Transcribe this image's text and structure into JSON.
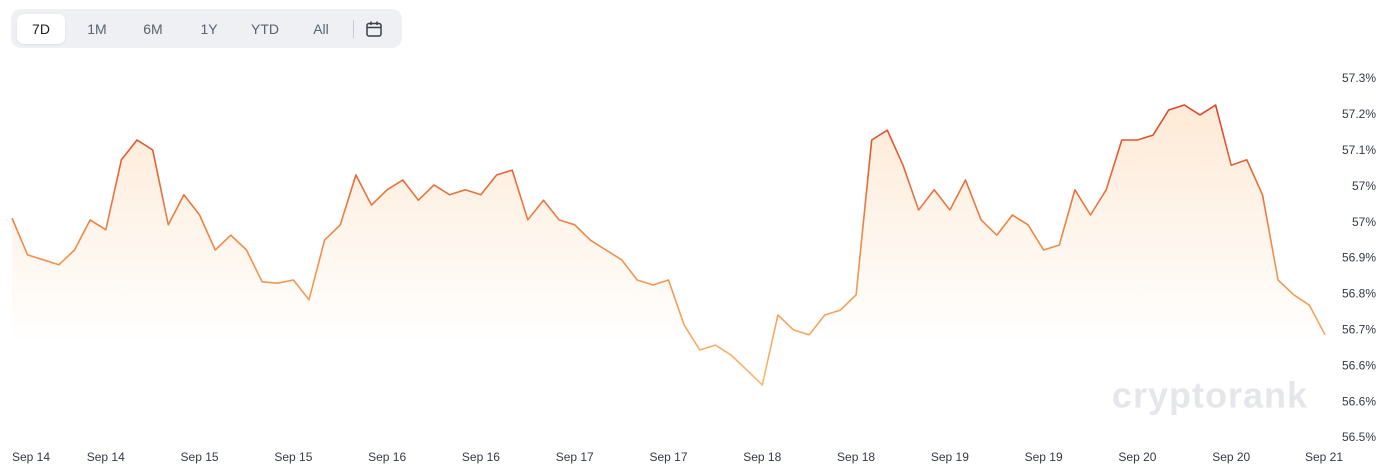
{
  "range_buttons": [
    "7D",
    "1M",
    "6M",
    "1Y",
    "YTD",
    "All"
  ],
  "watermark": "cryptorank",
  "chart_data": {
    "type": "line",
    "x": [
      0,
      2,
      4,
      6,
      8,
      10,
      12,
      14,
      16,
      18,
      20,
      22,
      24,
      26,
      28,
      30,
      32,
      34,
      36,
      38,
      40,
      42,
      44,
      46,
      48,
      50,
      52,
      54,
      56,
      58,
      60,
      62,
      64,
      66,
      68,
      70,
      72,
      74,
      76,
      78,
      80,
      82,
      84,
      86,
      88,
      90,
      92,
      94,
      96,
      98,
      100,
      102,
      104,
      106,
      108,
      110,
      112,
      114,
      116,
      118,
      120,
      122,
      124,
      126,
      128,
      130,
      132,
      134,
      136,
      138,
      140,
      142,
      144,
      146,
      148,
      150,
      152,
      154,
      156,
      158,
      160,
      162,
      164,
      166,
      168
    ],
    "values": [
      56.97,
      56.888,
      56.877,
      56.866,
      56.899,
      56.966,
      56.944,
      57.1,
      57.144,
      57.122,
      56.955,
      57.022,
      56.977,
      56.899,
      56.932,
      56.899,
      56.828,
      56.825,
      56.832,
      56.788,
      56.921,
      56.955,
      57.066,
      56.999,
      57.033,
      57.055,
      57.01,
      57.044,
      57.022,
      57.033,
      57.022,
      57.066,
      57.077,
      56.966,
      57.01,
      56.966,
      56.955,
      56.921,
      56.899,
      56.877,
      56.832,
      56.821,
      56.832,
      56.732,
      56.676,
      56.687,
      56.665,
      56.632,
      56.598,
      56.754,
      56.721,
      56.71,
      56.754,
      56.765,
      56.799,
      57.144,
      57.166,
      57.088,
      56.988,
      57.033,
      56.988,
      57.055,
      56.966,
      56.932,
      56.977,
      56.955,
      56.899,
      56.91,
      57.033,
      56.977,
      57.033,
      57.144,
      57.144,
      57.155,
      57.211,
      57.222,
      57.2,
      57.222,
      57.088,
      57.1,
      57.022,
      56.832,
      56.799,
      56.776,
      56.71
    ],
    "xlim": [
      0,
      168
    ],
    "xticks": [
      {
        "value": 0,
        "label": "Sep 14"
      },
      {
        "value": 12,
        "label": "Sep 14"
      },
      {
        "value": 24,
        "label": "Sep 15"
      },
      {
        "value": 36,
        "label": "Sep 15"
      },
      {
        "value": 48,
        "label": "Sep 16"
      },
      {
        "value": 60,
        "label": "Sep 16"
      },
      {
        "value": 72,
        "label": "Sep 17"
      },
      {
        "value": 84,
        "label": "Sep 17"
      },
      {
        "value": 96,
        "label": "Sep 18"
      },
      {
        "value": 108,
        "label": "Sep 18"
      },
      {
        "value": 120,
        "label": "Sep 19"
      },
      {
        "value": 132,
        "label": "Sep 19"
      },
      {
        "value": 144,
        "label": "Sep 20"
      },
      {
        "value": 156,
        "label": "Sep 20"
      },
      {
        "value": 168,
        "label": "Sep 21"
      }
    ],
    "ylim": [
      56.48,
      57.28
    ],
    "yticks": [
      {
        "value": 56.48,
        "label": "56.5%"
      },
      {
        "value": 56.56,
        "label": "56.6%"
      },
      {
        "value": 56.64,
        "label": "56.6%"
      },
      {
        "value": 56.72,
        "label": "56.7%"
      },
      {
        "value": 56.8,
        "label": "56.8%"
      },
      {
        "value": 56.88,
        "label": "56.9%"
      },
      {
        "value": 56.96,
        "label": "57%"
      },
      {
        "value": 57.04,
        "label": "57%"
      },
      {
        "value": 57.12,
        "label": "57.1%"
      },
      {
        "value": 57.2,
        "label": "57.2%"
      },
      {
        "value": 57.28,
        "label": "57.3%"
      }
    ],
    "grid": false,
    "gradient": [
      "#d6402a",
      "#ef8a48",
      "#f8bd78"
    ],
    "area_color": "#fde3c8"
  }
}
